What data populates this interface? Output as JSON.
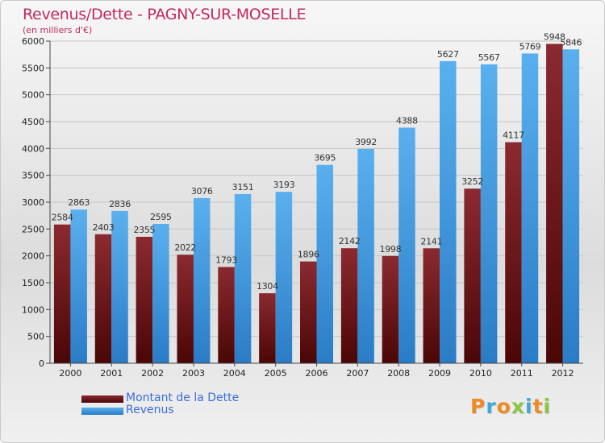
{
  "title": "Revenus/Dette - PAGNY-SUR-MOSELLE",
  "subtitle": "(en milliers d'€)",
  "logo": {
    "text": "Proxiti"
  },
  "colors": {
    "title": "#c12a5a",
    "dette_top": "#8b2a30",
    "dette_bottom": "#4a0606",
    "revenus_top": "#5ab0ee",
    "revenus_bottom": "#2a7cc6"
  },
  "chart_data": {
    "type": "bar",
    "title": "Revenus/Dette - PAGNY-SUR-MOSELLE",
    "ylabel": "(en milliers d'€)",
    "xlabel": "",
    "ylim": [
      0,
      6000
    ],
    "yticks": [
      0,
      500,
      1000,
      1500,
      2000,
      2500,
      3000,
      3500,
      4000,
      4500,
      5000,
      5500,
      6000
    ],
    "categories": [
      "2000",
      "2001",
      "2002",
      "2003",
      "2004",
      "2005",
      "2006",
      "2007",
      "2008",
      "2009",
      "2010",
      "2011",
      "2012"
    ],
    "series": [
      {
        "name": "Montant de la Dette",
        "values": [
          2584,
          2403,
          2355,
          2022,
          1793,
          1304,
          1896,
          2142,
          1998,
          2141,
          3252,
          4117,
          5948
        ]
      },
      {
        "name": "Revenus",
        "values": [
          2863,
          2836,
          2595,
          3076,
          3151,
          3193,
          3695,
          3992,
          4388,
          5627,
          5567,
          5769,
          5846
        ]
      }
    ],
    "legend_position": "bottom-left",
    "grid": true
  }
}
